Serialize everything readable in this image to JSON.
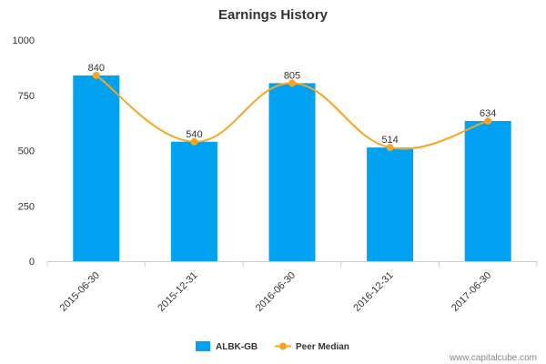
{
  "chart_data": {
    "type": "bar",
    "title": "Earnings History",
    "categories": [
      "2015-06-30",
      "2015-12-31",
      "2016-06-30",
      "2016-12-31",
      "2017-06-30"
    ],
    "series": [
      {
        "name": "ALBK-GB",
        "type": "bar",
        "values": [
          840,
          540,
          805,
          514,
          634
        ],
        "color": "#00A1F1"
      },
      {
        "name": "Peer Median",
        "type": "line",
        "values": [
          840,
          540,
          805,
          514,
          634
        ],
        "color": "#F5A623",
        "smooth": true
      }
    ],
    "data_labels": [
      "840",
      "540",
      "805",
      "514",
      "634"
    ],
    "yticks": [
      "0",
      "250",
      "500",
      "750",
      "1000"
    ],
    "ylim": [
      0,
      1000
    ],
    "xlabel": "",
    "ylabel": "",
    "legend_position": "bottom-center",
    "grid": false
  },
  "credit": "www.capitalcube.com"
}
